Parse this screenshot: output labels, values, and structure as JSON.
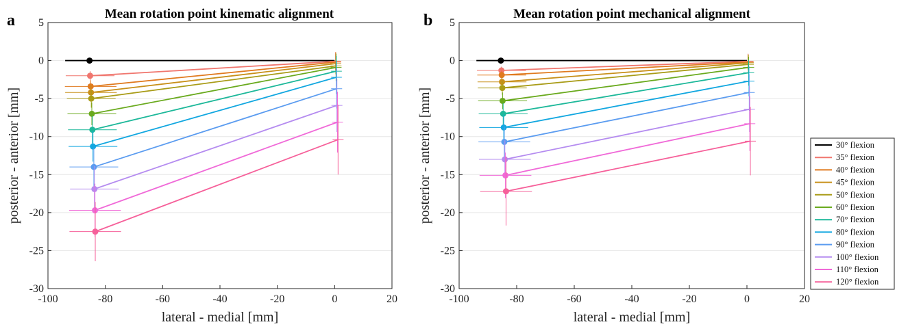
{
  "figure": {
    "legend": [
      {
        "label": "30° flexion",
        "color": "#000000"
      },
      {
        "label": "35° flexion",
        "color": "#f0766e"
      },
      {
        "label": "40° flexion",
        "color": "#e07a1f"
      },
      {
        "label": "45° flexion",
        "color": "#c8901a"
      },
      {
        "label": "50° flexion",
        "color": "#a99c18"
      },
      {
        "label": "60° flexion",
        "color": "#6aaa1e"
      },
      {
        "label": "70° flexion",
        "color": "#1db89a"
      },
      {
        "label": "80° flexion",
        "color": "#12a7e0"
      },
      {
        "label": "90° flexion",
        "color": "#5b9cf0"
      },
      {
        "label": "100° flexion",
        "color": "#b58cf0"
      },
      {
        "label": "110° flexion",
        "color": "#f06ad8"
      },
      {
        "label": "120° flexion",
        "color": "#f6609a"
      }
    ]
  },
  "chart_data": [
    {
      "type": "line",
      "panel": "a",
      "title": "Mean rotation point kinematic alignment",
      "xlabel": "lateral - medial [mm]",
      "ylabel": "posterior - anterior [mm]",
      "xlim": [
        -100,
        20
      ],
      "ylim": [
        -30,
        5
      ],
      "xticks": [
        -100,
        -80,
        -60,
        -40,
        -20,
        0,
        20
      ],
      "yticks": [
        5,
        0,
        -5,
        -10,
        -15,
        -20,
        -25,
        -30
      ],
      "grid": true,
      "series": [
        {
          "name": "30° flexion",
          "lateral": {
            "x": -85.5,
            "y": 0,
            "xerr": 0,
            "yerr": 0
          },
          "medial": {
            "x": 0,
            "y": 0,
            "yerr": 0
          },
          "line_start_x": -94
        },
        {
          "name": "35° flexion",
          "lateral": {
            "x": -85.3,
            "y": -2.0,
            "xerr": 8.5,
            "yerr": 0.6
          },
          "medial": {
            "x": 0.3,
            "y": -0.1,
            "yerr": 1.2
          }
        },
        {
          "name": "40° flexion",
          "lateral": {
            "x": -85.1,
            "y": -3.4,
            "xerr": 9.0,
            "yerr": 0.8
          },
          "medial": {
            "x": 0.4,
            "y": -0.2,
            "yerr": 1.3
          }
        },
        {
          "name": "45° flexion",
          "lateral": {
            "x": -85.0,
            "y": -4.2,
            "xerr": 9.0,
            "yerr": 1.0
          },
          "medial": {
            "x": 0.4,
            "y": -0.4,
            "yerr": 1.4
          }
        },
        {
          "name": "50° flexion",
          "lateral": {
            "x": -84.9,
            "y": -5.0,
            "xerr": 8.5,
            "yerr": 1.2
          },
          "medial": {
            "x": 0.5,
            "y": -0.7,
            "yerr": 1.6
          }
        },
        {
          "name": "60° flexion",
          "lateral": {
            "x": -84.7,
            "y": -7.0,
            "xerr": 8.5,
            "yerr": 1.5
          },
          "medial": {
            "x": 0.5,
            "y": -0.9,
            "yerr": 1.8
          }
        },
        {
          "name": "70° flexion",
          "lateral": {
            "x": -84.5,
            "y": -9.1,
            "xerr": 8.5,
            "yerr": 1.8
          },
          "medial": {
            "x": 0.6,
            "y": -1.4,
            "yerr": 2.0
          }
        },
        {
          "name": "80° flexion",
          "lateral": {
            "x": -84.3,
            "y": -11.3,
            "xerr": 8.5,
            "yerr": 2.0
          },
          "medial": {
            "x": 0.6,
            "y": -2.2,
            "yerr": 2.2
          }
        },
        {
          "name": "90° flexion",
          "lateral": {
            "x": -84.0,
            "y": -14.0,
            "xerr": 8.5,
            "yerr": 2.5
          },
          "medial": {
            "x": 0.7,
            "y": -3.7,
            "yerr": 2.6
          }
        },
        {
          "name": "100° flexion",
          "lateral": {
            "x": -83.8,
            "y": -16.9,
            "xerr": 8.5,
            "yerr": 3.0
          },
          "medial": {
            "x": 0.8,
            "y": -5.9,
            "yerr": 3.5
          }
        },
        {
          "name": "110° flexion",
          "lateral": {
            "x": -83.6,
            "y": -19.7,
            "xerr": 9.0,
            "yerr": 3.5
          },
          "medial": {
            "x": 1.0,
            "y": -8.1,
            "yerr": 4.0
          }
        },
        {
          "name": "120° flexion",
          "lateral": {
            "x": -83.5,
            "y": -22.5,
            "xerr": 9.0,
            "yerr": 3.9
          },
          "medial": {
            "x": 1.2,
            "y": -10.4,
            "yerr": 4.6
          }
        }
      ]
    },
    {
      "type": "line",
      "panel": "b",
      "title": "Mean rotation point mechanical alignment",
      "xlabel": "lateral - medial [mm]",
      "ylabel": "posterior - anterior [mm]",
      "xlim": [
        -100,
        20
      ],
      "ylim": [
        -30,
        5
      ],
      "xticks": [
        -100,
        -80,
        -60,
        -40,
        -20,
        0,
        20
      ],
      "yticks": [
        5,
        0,
        -5,
        -10,
        -15,
        -20,
        -25,
        -30
      ],
      "grid": true,
      "series": [
        {
          "name": "30° flexion",
          "lateral": {
            "x": -85.5,
            "y": 0,
            "xerr": 0,
            "yerr": 0
          },
          "medial": {
            "x": 0,
            "y": 0,
            "yerr": 0
          },
          "line_start_x": -94
        },
        {
          "name": "35° flexion",
          "lateral": {
            "x": -85.3,
            "y": -1.3,
            "xerr": 8.5,
            "yerr": 0.5
          },
          "medial": {
            "x": 0.4,
            "y": -0.1,
            "yerr": 1.0
          }
        },
        {
          "name": "40° flexion",
          "lateral": {
            "x": -85.2,
            "y": -1.9,
            "xerr": 8.5,
            "yerr": 0.6
          },
          "medial": {
            "x": 0.4,
            "y": -0.2,
            "yerr": 1.0
          }
        },
        {
          "name": "45° flexion",
          "lateral": {
            "x": -85.1,
            "y": -2.8,
            "xerr": 8.5,
            "yerr": 0.7
          },
          "medial": {
            "x": 0.5,
            "y": -0.3,
            "yerr": 1.1
          }
        },
        {
          "name": "50° flexion",
          "lateral": {
            "x": -85.0,
            "y": -3.6,
            "xerr": 8.5,
            "yerr": 0.9
          },
          "medial": {
            "x": 0.5,
            "y": -0.5,
            "yerr": 1.2
          }
        },
        {
          "name": "60° flexion",
          "lateral": {
            "x": -84.9,
            "y": -5.3,
            "xerr": 8.5,
            "yerr": 1.1
          },
          "medial": {
            "x": 0.6,
            "y": -0.9,
            "yerr": 1.4
          }
        },
        {
          "name": "70° flexion",
          "lateral": {
            "x": -84.7,
            "y": -7.0,
            "xerr": 8.5,
            "yerr": 1.4
          },
          "medial": {
            "x": 0.6,
            "y": -1.6,
            "yerr": 1.7
          }
        },
        {
          "name": "80° flexion",
          "lateral": {
            "x": -84.5,
            "y": -8.8,
            "xerr": 8.5,
            "yerr": 1.7
          },
          "medial": {
            "x": 0.7,
            "y": -2.7,
            "yerr": 2.0
          }
        },
        {
          "name": "90° flexion",
          "lateral": {
            "x": -84.3,
            "y": -10.7,
            "xerr": 9.0,
            "yerr": 2.0
          },
          "medial": {
            "x": 0.8,
            "y": -4.2,
            "yerr": 2.4
          }
        },
        {
          "name": "100° flexion",
          "lateral": {
            "x": -84.1,
            "y": -13.0,
            "xerr": 9.0,
            "yerr": 2.5
          },
          "medial": {
            "x": 0.9,
            "y": -6.4,
            "yerr": 3.0
          }
        },
        {
          "name": "110° flexion",
          "lateral": {
            "x": -83.9,
            "y": -15.1,
            "xerr": 9.0,
            "yerr": 3.0
          },
          "medial": {
            "x": 1.0,
            "y": -8.3,
            "yerr": 3.6
          }
        },
        {
          "name": "120° flexion",
          "lateral": {
            "x": -83.7,
            "y": -17.2,
            "xerr": 9.0,
            "yerr": 4.5
          },
          "medial": {
            "x": 1.2,
            "y": -10.6,
            "yerr": 4.5
          }
        }
      ]
    }
  ]
}
